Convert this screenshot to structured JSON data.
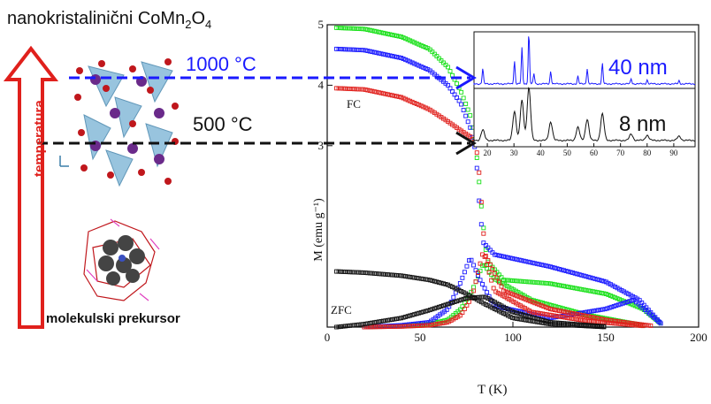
{
  "title_main": "nanokristalinični CoMn",
  "title_sub1": "2",
  "title_o": "O",
  "title_sub2": "4",
  "label_1000": "1000 °C",
  "label_500": "500 °C",
  "label_temperature": "temperatura",
  "label_precursor": "molekulski prekursor",
  "colors": {
    "blue": "#1a1aff",
    "red": "#e0201c",
    "green": "#18e018",
    "black": "#111111"
  },
  "chart_data": [
    {
      "type": "scatter",
      "xlabel": "T (K)",
      "ylabel": "M (emu g⁻¹)",
      "xlim": [
        0,
        200
      ],
      "ylim": [
        0,
        5
      ],
      "xticks": [
        0,
        50,
        100,
        150,
        200
      ],
      "yticks": [
        3,
        4,
        5
      ],
      "annotations": [
        "FC",
        "ZFC"
      ],
      "series": [
        {
          "color": "green",
          "fc": [
            [
              5,
              4.95
            ],
            [
              20,
              4.93
            ],
            [
              40,
              4.8
            ],
            [
              55,
              4.6
            ],
            [
              65,
              4.3
            ],
            [
              72,
              3.9
            ],
            [
              77,
              3.5
            ],
            [
              80,
              3.0
            ],
            [
              83,
              2.0
            ],
            [
              86,
              1.1
            ],
            [
              95,
              0.78
            ],
            [
              120,
              0.72
            ],
            [
              150,
              0.55
            ],
            [
              170,
              0.3
            ],
            [
              180,
              0.05
            ]
          ],
          "zfc": [
            [
              20,
              0.0
            ],
            [
              40,
              0.02
            ],
            [
              55,
              0.05
            ],
            [
              65,
              0.12
            ],
            [
              72,
              0.3
            ],
            [
              78,
              0.6
            ],
            [
              84,
              1.05
            ],
            [
              90,
              0.8
            ],
            [
              110,
              0.45
            ],
            [
              140,
              0.2
            ],
            [
              170,
              0.03
            ]
          ]
        },
        {
          "color": "blue",
          "fc": [
            [
              5,
              4.6
            ],
            [
              20,
              4.58
            ],
            [
              40,
              4.45
            ],
            [
              55,
              4.25
            ],
            [
              65,
              4.0
            ],
            [
              72,
              3.7
            ],
            [
              77,
              3.3
            ],
            [
              80,
              2.9
            ],
            [
              82,
              2.0
            ],
            [
              84,
              1.4
            ],
            [
              90,
              1.2
            ],
            [
              120,
              1.0
            ],
            [
              150,
              0.75
            ],
            [
              168,
              0.45
            ],
            [
              180,
              0.05
            ]
          ],
          "zfc": [
            [
              20,
              0.0
            ],
            [
              40,
              0.03
            ],
            [
              55,
              0.08
            ],
            [
              65,
              0.3
            ],
            [
              72,
              0.75
            ],
            [
              77,
              1.15
            ],
            [
              82,
              0.8
            ],
            [
              90,
              0.35
            ],
            [
              120,
              0.15
            ],
            [
              150,
              0.3
            ],
            [
              165,
              0.45
            ],
            [
              180,
              0.05
            ]
          ]
        },
        {
          "color": "red",
          "fc": [
            [
              5,
              3.95
            ],
            [
              20,
              3.93
            ],
            [
              40,
              3.8
            ],
            [
              55,
              3.6
            ],
            [
              65,
              3.4
            ],
            [
              72,
              3.25
            ],
            [
              77,
              3.15
            ],
            [
              80,
              3.05
            ],
            [
              82,
              2.5
            ],
            [
              85,
              1.2
            ],
            [
              95,
              0.6
            ],
            [
              120,
              0.3
            ],
            [
              150,
              0.12
            ],
            [
              175,
              0.02
            ]
          ],
          "zfc": [
            [
              20,
              0.0
            ],
            [
              40,
              0.01
            ],
            [
              55,
              0.03
            ],
            [
              65,
              0.08
            ],
            [
              72,
              0.2
            ],
            [
              78,
              0.5
            ],
            [
              84,
              1.25
            ],
            [
              90,
              0.6
            ],
            [
              110,
              0.25
            ],
            [
              140,
              0.1
            ],
            [
              170,
              0.02
            ]
          ]
        },
        {
          "color": "black",
          "fc": [
            [
              5,
              0.92
            ],
            [
              20,
              0.9
            ],
            [
              40,
              0.85
            ],
            [
              55,
              0.78
            ],
            [
              65,
              0.7
            ],
            [
              75,
              0.55
            ],
            [
              85,
              0.38
            ],
            [
              100,
              0.15
            ],
            [
              120,
              0.05
            ],
            [
              150,
              0.0
            ]
          ],
          "zfc": [
            [
              5,
              0.0
            ],
            [
              20,
              0.05
            ],
            [
              40,
              0.15
            ],
            [
              55,
              0.28
            ],
            [
              65,
              0.38
            ],
            [
              75,
              0.48
            ],
            [
              85,
              0.5
            ],
            [
              100,
              0.25
            ],
            [
              120,
              0.08
            ],
            [
              150,
              0.01
            ]
          ]
        }
      ]
    },
    {
      "type": "line",
      "xticks": [
        20,
        30,
        40,
        50,
        60,
        70,
        80,
        90
      ],
      "xlim": [
        15,
        98
      ],
      "series": [
        {
          "name": "40 nm",
          "color": "blue",
          "peaks": [
            [
              18.3,
              0.3
            ],
            [
              30.2,
              0.45
            ],
            [
              33.0,
              0.7
            ],
            [
              35.6,
              1.0
            ],
            [
              37.5,
              0.2
            ],
            [
              43.8,
              0.25
            ],
            [
              54.0,
              0.15
            ],
            [
              57.5,
              0.3
            ],
            [
              63.2,
              0.4
            ],
            [
              74.0,
              0.1
            ],
            [
              80.0,
              0.08
            ],
            [
              92.0,
              0.06
            ]
          ]
        },
        {
          "name": "8 nm",
          "color": "black",
          "peaks": [
            [
              18.3,
              0.2
            ],
            [
              30.2,
              0.55
            ],
            [
              33.0,
              0.75
            ],
            [
              35.6,
              1.0
            ],
            [
              43.8,
              0.35
            ],
            [
              54.0,
              0.25
            ],
            [
              57.5,
              0.4
            ],
            [
              63.2,
              0.5
            ],
            [
              74.0,
              0.12
            ],
            [
              80.0,
              0.1
            ],
            [
              92.0,
              0.08
            ]
          ]
        }
      ]
    }
  ]
}
